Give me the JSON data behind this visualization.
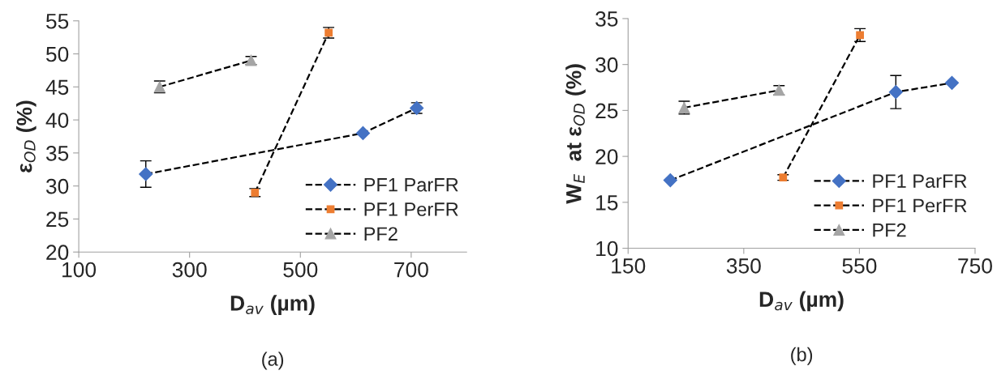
{
  "chart_data": [
    {
      "type": "line",
      "xlabel": "D$_{av}$ (µm)",
      "ylabel": "ε$_{OD}$ (%)",
      "annotations": [
        "(a)"
      ],
      "xlim": [
        100,
        800
      ],
      "xticks": [
        100,
        300,
        500,
        700
      ],
      "ylim": [
        20,
        55
      ],
      "yticks": [
        20,
        25,
        30,
        35,
        40,
        45,
        50,
        55
      ],
      "grid": false,
      "legend": "bottom right",
      "line_style": "dashed",
      "series": [
        {
          "name": "PF1 ParFR",
          "color": "#4472c4",
          "marker": "diamond",
          "x": [
            221,
            613,
            710
          ],
          "values": [
            31.8,
            38,
            41.8
          ],
          "errors": [
            2,
            null,
            0.8
          ]
        },
        {
          "name": "PF1 PerFR",
          "color": "#ed7d31",
          "marker": "square",
          "x": [
            418,
            551
          ],
          "values": [
            29,
            53.2
          ],
          "errors": [
            0.6,
            0.8
          ]
        },
        {
          "name": "PF2",
          "color": "#a5a5a5",
          "marker": "triangle",
          "x": [
            246,
            411
          ],
          "values": [
            45,
            49
          ],
          "errors": [
            0.9,
            0.6
          ]
        }
      ]
    },
    {
      "type": "line",
      "xlabel": "D$_{av}$ (µm)",
      "ylabel": "W$_{E}$  at ε$_{OD}$ (%)",
      "annotations": [
        "(b)"
      ],
      "xlim": [
        150,
        750
      ],
      "xticks": [
        150,
        350,
        550,
        750
      ],
      "ylim": [
        10,
        35
      ],
      "yticks": [
        10,
        15,
        20,
        25,
        30,
        35
      ],
      "grid": false,
      "legend": "bottom right",
      "line_style": "dashed",
      "series": [
        {
          "name": "PF1 ParFR",
          "color": "#4472c4",
          "marker": "diamond",
          "x": [
            223,
            613,
            710
          ],
          "values": [
            17.4,
            27,
            28
          ],
          "errors": [
            null,
            1.8,
            null
          ]
        },
        {
          "name": "PF1 PerFR",
          "color": "#ed7d31",
          "marker": "square",
          "x": [
            418,
            551
          ],
          "values": [
            17.7,
            33.2
          ],
          "errors": [
            0.3,
            0.7
          ]
        },
        {
          "name": "PF2",
          "color": "#a5a5a5",
          "marker": "triangle",
          "x": [
            247,
            411
          ],
          "values": [
            25.3,
            27.2
          ],
          "errors": [
            0.7,
            0.5
          ]
        }
      ]
    }
  ]
}
